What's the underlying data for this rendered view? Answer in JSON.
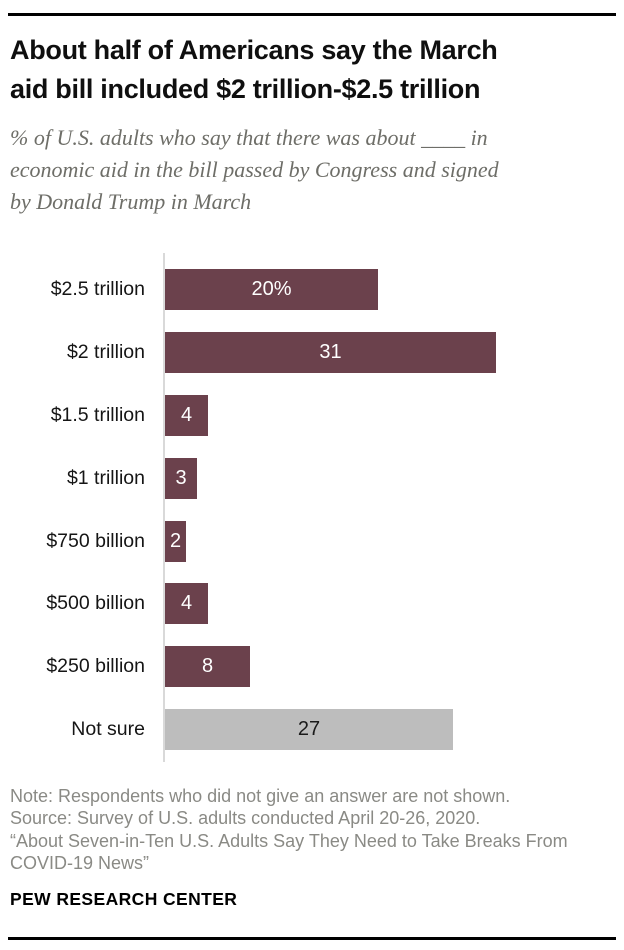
{
  "header": {
    "title_lines": [
      "About half of Americans say the March",
      "aid bill included $2 trillion-$2.5 trillion"
    ],
    "subtitle_lines": [
      "% of U.S. adults who say that there was about ____ in",
      "economic aid in the bill passed by Congress and signed",
      "by Donald Trump in March"
    ]
  },
  "chart_data": {
    "type": "bar",
    "orientation": "horizontal",
    "title": "About half of Americans say the March aid bill included $2 trillion-$2.5 trillion",
    "subtitle": "% of U.S. adults who say that there was about ____ in economic aid in the bill passed by Congress and signed by Donald Trump in March",
    "categories": [
      "$2.5 trillion",
      "$2 trillion",
      "$1.5 trillion",
      "$1 trillion",
      "$750 billion",
      "$500 billion",
      "$250 billion",
      "Not sure"
    ],
    "values": [
      20,
      31,
      4,
      3,
      2,
      4,
      8,
      27
    ],
    "value_labels": [
      "20%",
      "31",
      "4",
      "3",
      "2",
      "4",
      "8",
      "27"
    ],
    "bar_colors": [
      "#6b414c",
      "#6b414c",
      "#6b414c",
      "#6b414c",
      "#6b414c",
      "#6b414c",
      "#6b414c",
      "#bdbdbd"
    ],
    "value_label_colors": [
      "#ffffff",
      "#ffffff",
      "#ffffff",
      "#ffffff",
      "#ffffff",
      "#ffffff",
      "#ffffff",
      "#1a1a1a"
    ],
    "xlabel": "",
    "ylabel": "",
    "xlim": [
      0,
      43
    ],
    "grid": false,
    "legend": false
  },
  "footer": {
    "note": "Note: Respondents who did not give an answer are not shown.",
    "source": "Source: Survey of U.S. adults conducted April 20-26, 2020.",
    "quote": "“About Seven-in-Ten U.S. Adults Say They Need to Take Breaks From COVID-19 News”",
    "brand": "PEW RESEARCH CENTER"
  },
  "colors": {
    "accent_maroon": "#6b414c",
    "neutral_gray": "#bdbdbd",
    "axis_gray": "#d9d9d9",
    "note_gray": "#8a8a85"
  }
}
